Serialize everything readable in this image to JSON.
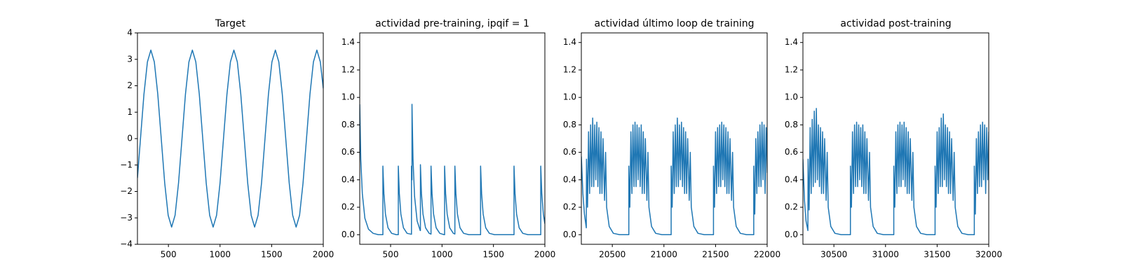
{
  "chart_data": [
    {
      "type": "line",
      "title": "Target",
      "color": "#1f77b4",
      "xlim": [
        200,
        2000
      ],
      "ylim": [
        -4,
        4
      ],
      "xticks": [
        500,
        1000,
        1500,
        2000
      ],
      "yticks": [
        {
          "value": -4,
          "label": "−4"
        },
        {
          "value": -3,
          "label": "−3"
        },
        {
          "value": -2,
          "label": "−2"
        },
        {
          "value": -1,
          "label": "−1"
        },
        0,
        1,
        2,
        3,
        4
      ],
      "x": [
        200,
        229.5,
        263,
        296.5,
        330,
        363.5,
        397,
        430.5,
        464,
        497.5,
        531,
        564.5,
        598,
        631.5,
        665,
        698.5,
        732,
        765.5,
        799,
        832.5,
        866,
        899.5,
        933,
        966.5,
        1000,
        1033.5,
        1067,
        1100.5,
        1134,
        1167.5,
        1201,
        1234.5,
        1268,
        1301.5,
        1335,
        1368.5,
        1402,
        1435.5,
        1469,
        1502.5,
        1536,
        1569.5,
        1603,
        1636.5,
        1670,
        1703.5,
        1737,
        1770.5,
        1804,
        1837.5,
        1871,
        1904.5,
        1938,
        1971.5,
        2000
      ],
      "values": [
        -1.49,
        0,
        1.68,
        2.9,
        3.35,
        2.9,
        1.68,
        0,
        -1.68,
        -2.9,
        -3.35,
        -2.9,
        -1.68,
        0,
        1.68,
        2.9,
        3.35,
        2.9,
        1.68,
        0,
        -1.68,
        -2.9,
        -3.35,
        -2.9,
        -1.68,
        0,
        1.68,
        2.9,
        3.35,
        2.9,
        1.68,
        0,
        -1.68,
        -2.9,
        -3.35,
        -2.9,
        -1.68,
        0,
        1.68,
        2.9,
        3.35,
        2.9,
        1.68,
        0,
        -1.68,
        -2.9,
        -3.35,
        -2.9,
        -1.68,
        0,
        1.68,
        2.9,
        3.35,
        2.9,
        1.9
      ]
    },
    {
      "type": "line",
      "title": "actividad pre-training, ipqif = 1",
      "color": "#1f77b4",
      "xlim": [
        200,
        2000
      ],
      "ylim": [
        -0.07,
        1.47
      ],
      "xticks": [
        500,
        1000,
        1500,
        2000
      ],
      "yticks": [
        {
          "value": 0,
          "label": "0.0"
        },
        0.2,
        0.4,
        0.6,
        0.8,
        {
          "value": 1,
          "label": "1.0"
        },
        1.2,
        1.4
      ],
      "x": [
        200,
        210,
        225,
        250,
        285,
        330,
        380,
        425,
        425,
        435,
        450,
        475,
        510,
        555,
        575,
        575,
        585,
        600,
        625,
        660,
        703,
        703,
        708,
        708,
        718,
        733,
        758,
        788,
        790,
        790,
        800,
        815,
        840,
        875,
        893,
        893,
        903,
        918,
        943,
        978,
        1020,
        1025,
        1025,
        1035,
        1050,
        1075,
        1110,
        1125,
        1125,
        1135,
        1150,
        1175,
        1210,
        1260,
        1375,
        1375,
        1385,
        1400,
        1425,
        1460,
        1510,
        1700,
        1700,
        1710,
        1725,
        1750,
        1785,
        1835,
        1960,
        1960,
        1970,
        1985,
        2000
      ],
      "values": [
        0.95,
        0.55,
        0.3,
        0.12,
        0.04,
        0.01,
        0,
        0,
        0.5,
        0.3,
        0.15,
        0.05,
        0.01,
        0,
        0,
        0.5,
        0.3,
        0.15,
        0.05,
        0.01,
        0.003,
        0.5,
        0.4,
        0.95,
        0.55,
        0.28,
        0.1,
        0.03,
        0.03,
        0.51,
        0.3,
        0.15,
        0.05,
        0.01,
        0.004,
        0.5,
        0.3,
        0.15,
        0.05,
        0.01,
        0,
        0,
        0.5,
        0.3,
        0.15,
        0.05,
        0.01,
        0.005,
        0.5,
        0.3,
        0.15,
        0.05,
        0.01,
        0,
        0,
        0.5,
        0.3,
        0.15,
        0.05,
        0.01,
        0,
        0,
        0.5,
        0.3,
        0.15,
        0.05,
        0.01,
        0,
        0,
        0.5,
        0.3,
        0.15,
        0.08
      ]
    },
    {
      "type": "line",
      "title": "actividad último loop de training",
      "color": "#1f77b4",
      "xlim": [
        20200,
        22000
      ],
      "ylim": [
        -0.07,
        1.47
      ],
      "xticks": [
        20500,
        21000,
        21500,
        22000
      ],
      "yticks": [
        {
          "value": 0,
          "label": "0.0"
        },
        0.2,
        0.4,
        0.6,
        0.8,
        {
          "value": 1,
          "label": "1.0"
        },
        1.2,
        1.4
      ],
      "x": [
        20200,
        20215,
        20230,
        20248,
        20250,
        20260,
        20270,
        20280,
        20290,
        20300,
        20310,
        20320,
        20330,
        20340,
        20350,
        20360,
        20370,
        20380,
        20390,
        20400,
        20410,
        20425,
        20435,
        20445,
        20470,
        20510,
        20570,
        20660,
        20660,
        20670,
        20680,
        20690,
        20700,
        20710,
        20720,
        20730,
        20740,
        20750,
        20760,
        20770,
        20780,
        20790,
        20800,
        20810,
        20820,
        20835,
        20845,
        20855,
        20880,
        20920,
        20980,
        21070,
        21070,
        21080,
        21090,
        21100,
        21110,
        21120,
        21130,
        21140,
        21150,
        21160,
        21170,
        21180,
        21190,
        21200,
        21210,
        21220,
        21230,
        21245,
        21255,
        21265,
        21290,
        21330,
        21390,
        21480,
        21480,
        21490,
        21500,
        21510,
        21520,
        21530,
        21540,
        21550,
        21560,
        21570,
        21580,
        21590,
        21600,
        21610,
        21620,
        21630,
        21640,
        21655,
        21665,
        21675,
        21700,
        21740,
        21800,
        21870,
        21870,
        21880,
        21890,
        21900,
        21910,
        21920,
        21930,
        21940,
        21950,
        21960,
        21970,
        21980,
        21990,
        22000
      ],
      "values": [
        0.57,
        0.3,
        0.15,
        0.05,
        0.55,
        0.2,
        0.75,
        0.3,
        0.8,
        0.35,
        0.85,
        0.35,
        0.8,
        0.4,
        0.82,
        0.35,
        0.78,
        0.3,
        0.75,
        0.3,
        0.7,
        0.25,
        0.6,
        0.2,
        0.06,
        0.01,
        0,
        0,
        0.5,
        0.2,
        0.75,
        0.3,
        0.8,
        0.35,
        0.82,
        0.35,
        0.8,
        0.4,
        0.78,
        0.35,
        0.8,
        0.3,
        0.75,
        0.3,
        0.7,
        0.25,
        0.6,
        0.2,
        0.06,
        0.01,
        0,
        0,
        0.5,
        0.2,
        0.75,
        0.3,
        0.8,
        0.35,
        0.85,
        0.35,
        0.8,
        0.4,
        0.82,
        0.35,
        0.78,
        0.3,
        0.75,
        0.3,
        0.7,
        0.25,
        0.6,
        0.2,
        0.06,
        0.01,
        0,
        0,
        0.5,
        0.2,
        0.75,
        0.3,
        0.78,
        0.35,
        0.8,
        0.35,
        0.82,
        0.4,
        0.8,
        0.35,
        0.78,
        0.3,
        0.75,
        0.3,
        0.7,
        0.25,
        0.6,
        0.2,
        0.06,
        0.01,
        0,
        0,
        0.5,
        0.15,
        0.7,
        0.3,
        0.75,
        0.35,
        0.8,
        0.35,
        0.82,
        0.4,
        0.8,
        0.3,
        0.78,
        0.45
      ]
    },
    {
      "type": "line",
      "title": "actividad post-training",
      "color": "#1f77b4",
      "xlim": [
        30200,
        32000
      ],
      "ylim": [
        -0.07,
        1.47
      ],
      "xticks": [
        30500,
        31000,
        31500,
        32000
      ],
      "yticks": [
        {
          "value": 0,
          "label": "0.0"
        },
        0.2,
        0.4,
        0.6,
        0.8,
        {
          "value": 1,
          "label": "1.0"
        },
        1.2,
        1.4
      ],
      "x": [
        30200,
        30215,
        30230,
        30248,
        30250,
        30260,
        30270,
        30280,
        30290,
        30300,
        30310,
        30320,
        30330,
        30340,
        30350,
        30360,
        30370,
        30380,
        30390,
        30400,
        30410,
        30425,
        30435,
        30445,
        30470,
        30510,
        30570,
        30660,
        30660,
        30670,
        30680,
        30690,
        30700,
        30710,
        30720,
        30730,
        30740,
        30750,
        30760,
        30770,
        30780,
        30790,
        30800,
        30810,
        30820,
        30835,
        30845,
        30855,
        30880,
        30920,
        30980,
        31080,
        31080,
        31090,
        31100,
        31110,
        31120,
        31130,
        31140,
        31150,
        31160,
        31170,
        31180,
        31190,
        31200,
        31210,
        31220,
        31230,
        31240,
        31255,
        31265,
        31275,
        31300,
        31340,
        31400,
        31480,
        31480,
        31490,
        31500,
        31510,
        31520,
        31530,
        31540,
        31550,
        31560,
        31570,
        31580,
        31590,
        31600,
        31610,
        31620,
        31630,
        31640,
        31655,
        31665,
        31675,
        31700,
        31740,
        31800,
        31860,
        31860,
        31870,
        31880,
        31890,
        31900,
        31910,
        31920,
        31930,
        31940,
        31950,
        31960,
        31970,
        31980,
        31990,
        32000
      ],
      "values": [
        0.55,
        0.25,
        0.1,
        0.03,
        0.55,
        0.18,
        0.78,
        0.3,
        0.84,
        0.35,
        0.9,
        0.38,
        0.92,
        0.4,
        0.8,
        0.35,
        0.78,
        0.3,
        0.75,
        0.3,
        0.7,
        0.25,
        0.6,
        0.2,
        0.06,
        0.01,
        0,
        0,
        0.5,
        0.2,
        0.75,
        0.3,
        0.8,
        0.35,
        0.82,
        0.35,
        0.8,
        0.4,
        0.78,
        0.35,
        0.8,
        0.3,
        0.75,
        0.3,
        0.7,
        0.25,
        0.6,
        0.2,
        0.06,
        0.01,
        0,
        0,
        0.5,
        0.2,
        0.75,
        0.3,
        0.8,
        0.35,
        0.82,
        0.35,
        0.8,
        0.4,
        0.82,
        0.35,
        0.78,
        0.3,
        0.75,
        0.3,
        0.7,
        0.25,
        0.6,
        0.2,
        0.06,
        0.01,
        0,
        0,
        0.5,
        0.2,
        0.75,
        0.3,
        0.78,
        0.35,
        0.85,
        0.35,
        0.88,
        0.4,
        0.8,
        0.35,
        0.78,
        0.3,
        0.75,
        0.3,
        0.7,
        0.25,
        0.6,
        0.2,
        0.06,
        0.01,
        0,
        0,
        0.5,
        0.15,
        0.7,
        0.3,
        0.75,
        0.35,
        0.8,
        0.35,
        0.82,
        0.4,
        0.8,
        0.3,
        0.78,
        0.4,
        0.75
      ]
    }
  ]
}
